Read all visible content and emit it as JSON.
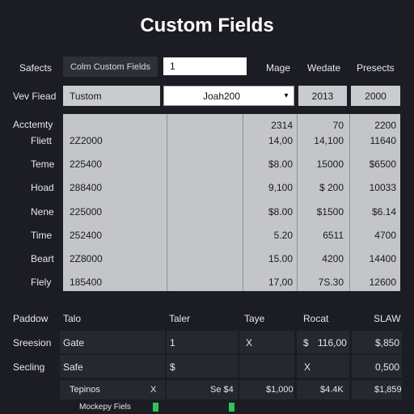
{
  "page_title": "Custom Fields",
  "top_bar": {
    "label": "Safects",
    "button_label": "Colm Custom Fields",
    "input_value": "1",
    "col_headers": [
      "Mage",
      "Wedate",
      "Presects"
    ]
  },
  "field_row": {
    "label": "Vev Fiead",
    "custom_value": "Tustom",
    "select_value": "Joah200",
    "values": [
      "2013",
      "2000"
    ]
  },
  "grid": {
    "row_labels": [
      "Acctemty",
      "Fliett",
      "Teme",
      "Hoad",
      "Nene",
      "Time",
      "Beart",
      "Flely"
    ],
    "head_values": {
      "top": [
        "2314",
        "70",
        "2200"
      ],
      "second": [
        "14,00",
        "14,100",
        "11640"
      ]
    },
    "rows": [
      {
        "id": "2Z2000",
        "a": "14,00",
        "b": "14,100",
        "c": "11640"
      },
      {
        "id": "225400",
        "a": "$8.00",
        "b": "15000",
        "c": "$6500"
      },
      {
        "id": "288400",
        "a": "9,100",
        "b": "$ 200",
        "c": "10033"
      },
      {
        "id": "225000",
        "a": "$8.00",
        "b": "$1500",
        "c": "$6.14"
      },
      {
        "id": "252400",
        "a": "5.20",
        "b": "6511",
        "c": "4700"
      },
      {
        "id": "2Z8000",
        "a": "15.00",
        "b": "4200",
        "c": "14400"
      },
      {
        "id": "185400",
        "a": "17,00",
        "b": "7S.30",
        "c": "12600"
      }
    ]
  },
  "bottom_table": {
    "headers": [
      "Paddow",
      "Talo",
      "Taler",
      "Taye",
      "Rocat",
      "SLAW"
    ],
    "rows": [
      {
        "label": "Sreesion",
        "b": "Gate",
        "c": "1",
        "d": "X",
        "e": "$",
        "f": "116,00",
        "g": "$,850"
      },
      {
        "label": "Secling",
        "b": "Safe",
        "c": "$",
        "d": "",
        "e": "X",
        "f": "",
        "g": "0,500"
      },
      {
        "label": "",
        "b": "Tepinos",
        "c": "X",
        "d": "Se $4",
        "e": "$1,000",
        "f": "$4.4K",
        "g": "$1,859"
      }
    ],
    "footer_text": "Mockepy Fiels"
  },
  "colors": {
    "background": "#1c1d24",
    "cell_light": "#c9cbcf",
    "cell_dark": "#26282f",
    "accent_green": "#34c25a"
  }
}
